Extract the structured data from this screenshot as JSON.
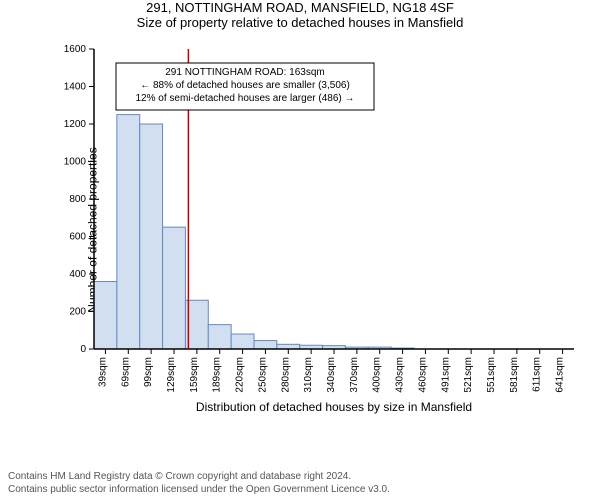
{
  "title": "291, NOTTINGHAM ROAD, MANSFIELD, NG18 4SF",
  "subtitle": "Size of property relative to detached houses in Mansfield",
  "y_axis_label": "Number of detached properties",
  "x_axis_label": "Distribution of detached houses by size in Mansfield",
  "annotation": {
    "line1": "291 NOTTINGHAM ROAD: 163sqm",
    "line2": "← 88% of detached houses are smaller (3,506)",
    "line3": "12% of semi-detached houses are larger (486) →",
    "border_color": "#000000",
    "background": "#ffffff",
    "fontsize": 10
  },
  "chart": {
    "type": "histogram",
    "categories": [
      "39sqm",
      "69sqm",
      "99sqm",
      "129sqm",
      "159sqm",
      "189sqm",
      "220sqm",
      "250sqm",
      "280sqm",
      "310sqm",
      "340sqm",
      "370sqm",
      "400sqm",
      "430sqm",
      "460sqm",
      "491sqm",
      "521sqm",
      "551sqm",
      "581sqm",
      "611sqm",
      "641sqm"
    ],
    "values": [
      360,
      1250,
      1200,
      650,
      260,
      130,
      80,
      45,
      25,
      20,
      18,
      10,
      10,
      5,
      0,
      0,
      0,
      0,
      0,
      0,
      0
    ],
    "bar_fill": "#d2dff0",
    "bar_stroke": "#6489bf",
    "bar_stroke_width": 1,
    "ylim": [
      0,
      1600
    ],
    "yticks": [
      0,
      200,
      400,
      600,
      800,
      1000,
      1200,
      1400,
      1600
    ],
    "axis_color": "#000000",
    "tick_color": "#000000",
    "tick_fontsize": 10,
    "background": "#ffffff",
    "marker": {
      "value_sqm": 163,
      "line_color": "#c20000",
      "line_width": 1.5,
      "x_index_before": 4
    }
  },
  "footer_line1": "Contains HM Land Registry data © Crown copyright and database right 2024.",
  "footer_line2": "Contains public sector information licensed under the Open Government Licence v3.0."
}
